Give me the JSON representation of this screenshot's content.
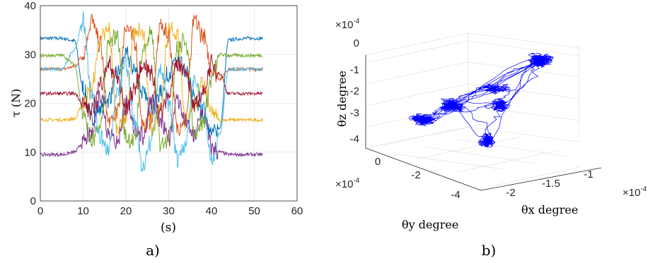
{
  "chart_data": [
    {
      "type": "line",
      "panel_label": "a)",
      "xlabel": "(s)",
      "ylabel": "τ (N)",
      "xlim": [
        0,
        60
      ],
      "ylim": [
        0,
        40
      ],
      "x_ticks": [
        "0",
        "10",
        "20",
        "30",
        "40",
        "50",
        "60"
      ],
      "y_ticks": [
        "0",
        "10",
        "20",
        "30",
        "40"
      ],
      "grid": true,
      "x": [
        0,
        5,
        8,
        10,
        12,
        14,
        16,
        18,
        20,
        22,
        24,
        26,
        28,
        30,
        32,
        34,
        36,
        38,
        40,
        42,
        44,
        48,
        52
      ],
      "series": [
        {
          "color": "#0072BD",
          "values": [
            33.3,
            33.3,
            32.8,
            23,
            17,
            19,
            21,
            26,
            30,
            27,
            22,
            19,
            22,
            26,
            29,
            26,
            21,
            18,
            14,
            15,
            33,
            33.3,
            33.3
          ]
        },
        {
          "color": "#D95319",
          "values": [
            27.0,
            27.0,
            27.5,
            30,
            37,
            32,
            16,
            18,
            36,
            33,
            15,
            17,
            36,
            34,
            15,
            17,
            37,
            34,
            27,
            25,
            27,
            27,
            27
          ]
        },
        {
          "color": "#EDB120",
          "values": [
            16.6,
            16.6,
            16.8,
            20,
            23,
            33,
            35,
            15,
            17,
            35,
            34,
            15,
            18,
            35,
            34,
            16,
            20,
            24,
            18,
            16.6,
            16.6,
            16.6,
            16.6
          ]
        },
        {
          "color": "#7E2F8E",
          "values": [
            9.5,
            9.5,
            10,
            12,
            14,
            22,
            14,
            12,
            20,
            15,
            13,
            21,
            16,
            13,
            21,
            16,
            13,
            19,
            11,
            10,
            9.5,
            9.5,
            9.5
          ]
        },
        {
          "color": "#77AC30",
          "values": [
            29.8,
            29.8,
            28,
            18,
            12,
            15,
            32,
            34,
            13,
            12,
            31,
            34,
            12,
            13,
            31,
            33,
            14,
            16,
            25,
            30,
            29.8,
            29.8,
            29.8
          ]
        },
        {
          "color": "#4DBEEE",
          "values": [
            27.0,
            27.0,
            31,
            37,
            22,
            13,
            10,
            22,
            28,
            16,
            7,
            12,
            27,
            20,
            9,
            12,
            25,
            20,
            8,
            14,
            27,
            27,
            27
          ]
        },
        {
          "color": "#A2142F",
          "values": [
            22.0,
            22.0,
            22,
            20,
            18,
            24,
            28,
            25,
            19,
            23,
            28,
            26,
            18,
            22,
            28,
            27,
            19,
            22,
            28,
            26,
            22,
            22,
            22
          ]
        }
      ]
    },
    {
      "type": "line",
      "panel_label": "b)",
      "title": "",
      "xlabel": "θx degree",
      "ylabel": "θy degree",
      "zlabel": "θz degree",
      "x_ticks": [
        "-2",
        "-1.5",
        "-1"
      ],
      "y_ticks": [
        "0",
        "-2",
        "-4"
      ],
      "z_ticks": [
        "0",
        "-1",
        "-2",
        "-3",
        "-4"
      ],
      "x_exponent": "×10",
      "y_exponent": "×10",
      "z_exponent": "×10",
      "exponent_power": "-4",
      "color": "#0000FF",
      "grid": true,
      "projection": "3d"
    }
  ]
}
